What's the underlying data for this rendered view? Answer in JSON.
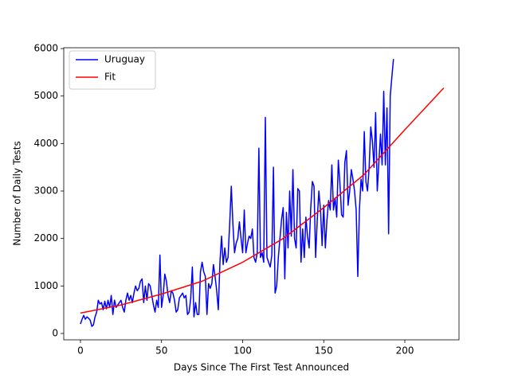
{
  "chart_data": {
    "type": "line",
    "x_label": "Days Since The First Test Announced",
    "y_label": "Number of Daily Tests",
    "xlim": [
      -10.3,
      233.4
    ],
    "ylim": [
      -134,
      6017
    ],
    "xticks": [
      0,
      50,
      100,
      150,
      200
    ],
    "yticks": [
      0,
      1000,
      2000,
      3000,
      4000,
      5000,
      6000
    ],
    "legend": "upper left",
    "grid": false,
    "series": [
      {
        "name": "Uruguay",
        "color": "#0000ff",
        "x": [
          0,
          1,
          2,
          3,
          4,
          5,
          6,
          7,
          8,
          9,
          10,
          11,
          12,
          13,
          14,
          15,
          16,
          17,
          18,
          19,
          20,
          21,
          22,
          23,
          24,
          25,
          26,
          27,
          28,
          29,
          30,
          31,
          32,
          33,
          34,
          35,
          36,
          37,
          38,
          39,
          40,
          41,
          42,
          43,
          44,
          45,
          46,
          47,
          48,
          49,
          50,
          51,
          52,
          53,
          54,
          55,
          56,
          57,
          58,
          59,
          60,
          61,
          62,
          63,
          64,
          65,
          66,
          67,
          68,
          69,
          70,
          71,
          72,
          73,
          74,
          75,
          76,
          77,
          78,
          79,
          80,
          81,
          82,
          83,
          84,
          85,
          86,
          87,
          88,
          89,
          90,
          91,
          92,
          93,
          94,
          95,
          96,
          97,
          98,
          99,
          100,
          101,
          102,
          103,
          104,
          105,
          106,
          107,
          108,
          109,
          110,
          111,
          112,
          113,
          114,
          115,
          116,
          117,
          118,
          119,
          120,
          121,
          122,
          123,
          124,
          125,
          126,
          127,
          128,
          129,
          130,
          131,
          132,
          133,
          134,
          135,
          136,
          137,
          138,
          139,
          140,
          141,
          142,
          143,
          144,
          145,
          146,
          147,
          148,
          149,
          150,
          151,
          152,
          153,
          154,
          155,
          156,
          157,
          158,
          159,
          160,
          161,
          162,
          163,
          164,
          165,
          166,
          167,
          168,
          169,
          170,
          171,
          172,
          173,
          174,
          175,
          176,
          177,
          178,
          179,
          180,
          181,
          182,
          183,
          184,
          185,
          186,
          187,
          188,
          189,
          190,
          191,
          192,
          193
        ],
        "values": [
          200,
          300,
          380,
          300,
          350,
          320,
          280,
          150,
          180,
          350,
          450,
          700,
          620,
          650,
          500,
          680,
          520,
          700,
          550,
          800,
          400,
          700,
          550,
          600,
          650,
          700,
          550,
          450,
          700,
          850,
          700,
          800,
          650,
          850,
          1000,
          900,
          950,
          1100,
          1150,
          650,
          1000,
          700,
          1050,
          1000,
          800,
          600,
          450,
          700,
          550,
          1650,
          550,
          800,
          1250,
          1100,
          800,
          650,
          900,
          850,
          700,
          450,
          500,
          750,
          800,
          850,
          750,
          800,
          400,
          450,
          750,
          1400,
          350,
          650,
          400,
          400,
          1300,
          1500,
          1300,
          1200,
          400,
          1050,
          950,
          1050,
          1450,
          1200,
          900,
          500,
          1500,
          2050,
          1450,
          1800,
          1500,
          1600,
          2300,
          3100,
          2300,
          1700,
          1900,
          2000,
          2350,
          2000,
          1700,
          2600,
          1700,
          1900,
          2050,
          2000,
          2200,
          1600,
          1500,
          1700,
          3900,
          1600,
          1700,
          1500,
          4550,
          1600,
          1500,
          1400,
          1650,
          3500,
          850,
          1000,
          1600,
          2000,
          2400,
          2650,
          1150,
          2550,
          1800,
          3000,
          2050,
          3450,
          2000,
          1800,
          3050,
          3000,
          1500,
          2200,
          1600,
          2450,
          2050,
          1800,
          2650,
          3200,
          3100,
          1600,
          2400,
          3000,
          2600,
          1850,
          2700,
          1800,
          2400,
          2800,
          2600,
          3550,
          2600,
          2850,
          2450,
          3650,
          3150,
          2500,
          2450,
          3600,
          3850,
          2700,
          3000,
          3450,
          3250,
          3000,
          2600,
          1200,
          2600,
          3250,
          3000,
          4250,
          3200,
          3000,
          3500,
          4350,
          4050,
          3500,
          4650,
          3000,
          3600,
          4200,
          3550,
          5100,
          3550,
          4750,
          2100,
          5000,
          5400,
          5780
        ]
      },
      {
        "name": "Fit",
        "color": "#ff0000",
        "x": [
          0,
          25,
          50,
          75,
          100,
          125,
          150,
          175,
          200,
          224
        ],
        "values": [
          430,
          600,
          830,
          1100,
          1500,
          2000,
          2650,
          3350,
          4290,
          5170
        ]
      }
    ]
  }
}
